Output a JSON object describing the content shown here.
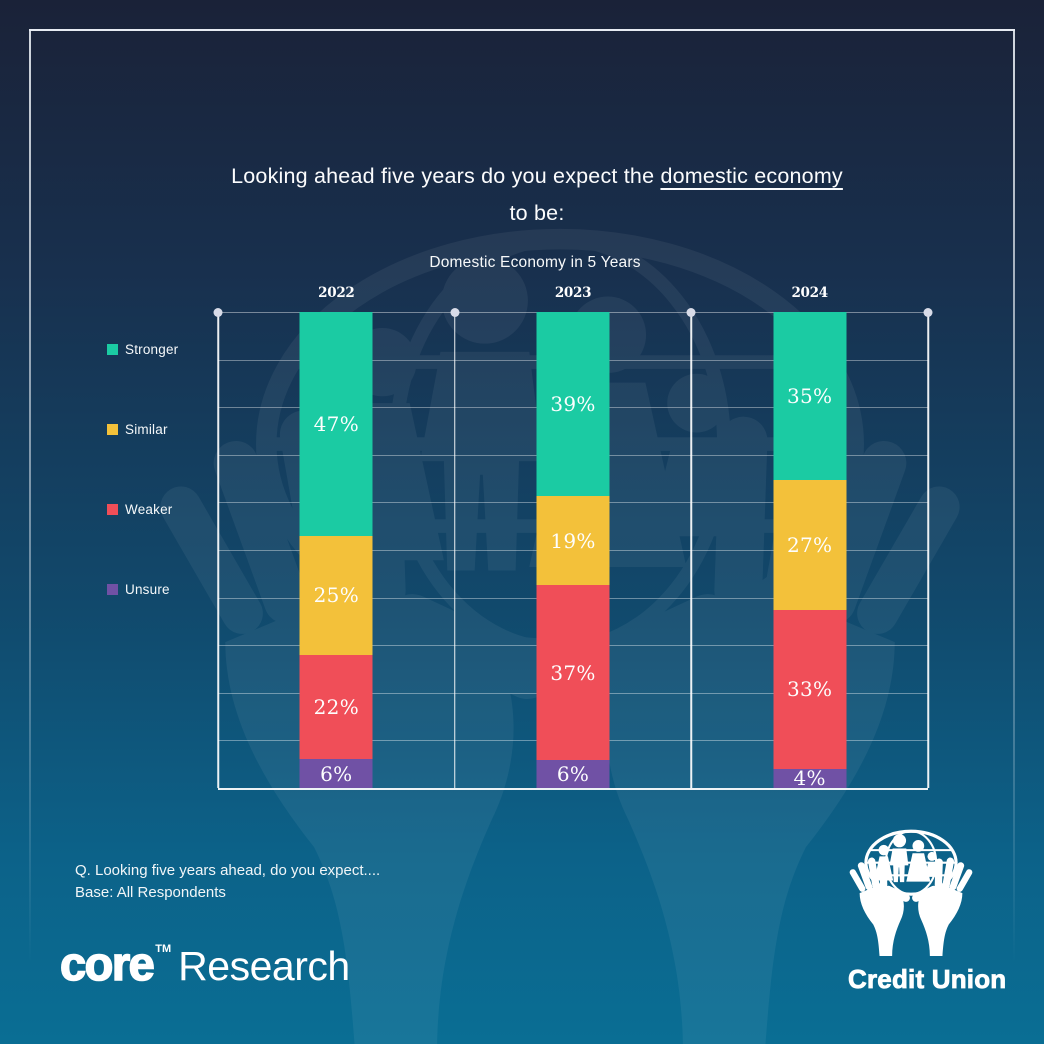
{
  "title": {
    "prefix": "Looking ahead five years do you expect the ",
    "underlined": "domestic economy",
    "line2": "to be:"
  },
  "chart_data": {
    "type": "bar",
    "stacked": true,
    "title": "Domestic Economy in 5 Years",
    "categories": [
      "2022",
      "2023",
      "2024"
    ],
    "series": [
      {
        "name": "Stronger",
        "color": "#1BCBA3",
        "values": [
          47,
          39,
          35
        ]
      },
      {
        "name": "Similar",
        "color": "#F3C13A",
        "values": [
          25,
          19,
          27
        ]
      },
      {
        "name": "Weaker",
        "color": "#F04E58",
        "values": [
          22,
          37,
          33
        ]
      },
      {
        "name": "Unsure",
        "color": "#7051A5",
        "values": [
          6,
          6,
          4
        ]
      }
    ],
    "value_format": "{v}%",
    "ylim": [
      0,
      100
    ],
    "gridline_count": 10,
    "grid": true,
    "legend_position": "left",
    "xlabel": "",
    "ylabel": ""
  },
  "footer": {
    "question": "Q. Looking five years ahead, do you expect....",
    "base": "Base: All Respondents"
  },
  "branding": {
    "core_logo": {
      "word": "core",
      "tm": "TM",
      "suffix": "Research"
    },
    "credit_union": {
      "label": "Credit Union"
    }
  },
  "colors": {
    "background_top": "#1A2238",
    "background_bottom": "#0A6E94",
    "grid_line": "rgba(255,255,255,0.38)",
    "axis_line": "#FFFFFF",
    "divider_dot": "#D8DBE8",
    "text": "#FFFFFF"
  }
}
